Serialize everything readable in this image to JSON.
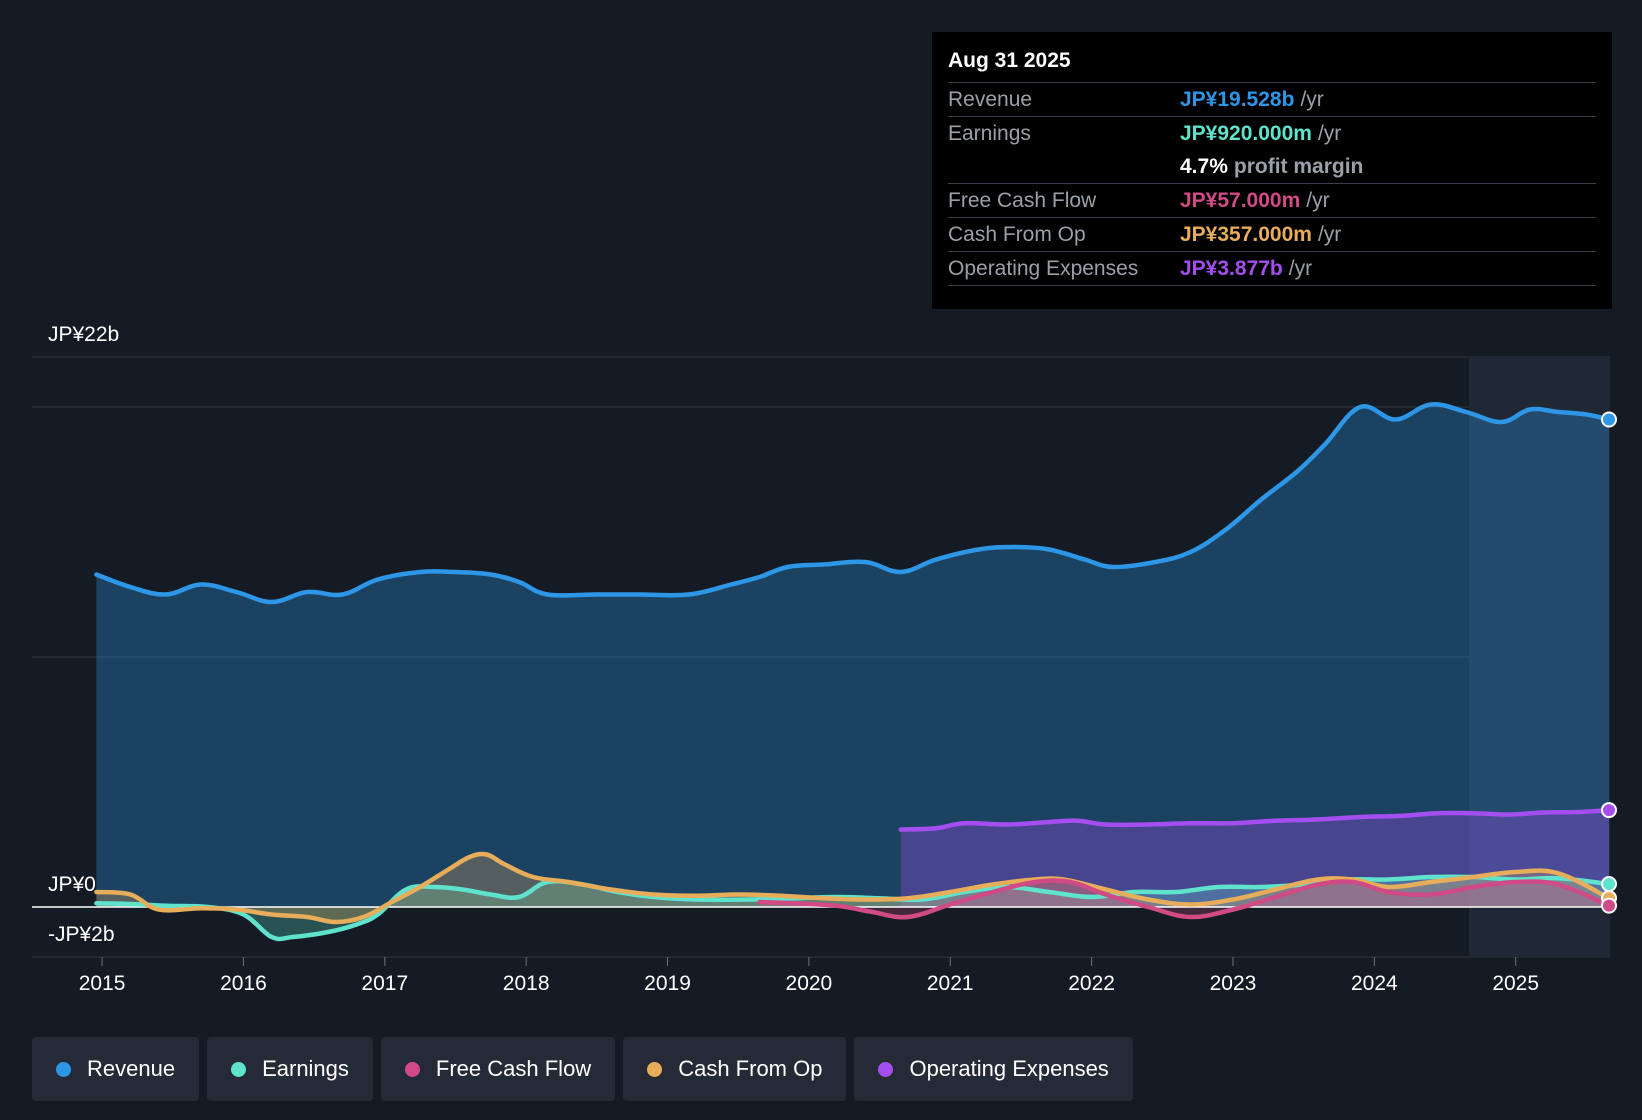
{
  "colors": {
    "revenue": "#2d96e6",
    "earnings": "#5fe3cc",
    "fcf": "#d04a85",
    "cfo": "#e8ad5a",
    "opex": "#a44ef0"
  },
  "tooltip": {
    "date": "Aug 31 2025",
    "revenue_label": "Revenue",
    "revenue_value": "JP¥19.528b",
    "earnings_label": "Earnings",
    "earnings_value": "JP¥920.000m",
    "margin_value": "4.7%",
    "margin_label": "profit margin",
    "fcf_label": "Free Cash Flow",
    "fcf_value": "JP¥57.000m",
    "cfo_label": "Cash From Op",
    "cfo_value": "JP¥357.000m",
    "opex_label": "Operating Expenses",
    "opex_value": "JP¥3.877b",
    "per_year": "/yr"
  },
  "legend": {
    "revenue": "Revenue",
    "earnings": "Earnings",
    "fcf": "Free Cash Flow",
    "cfo": "Cash From Op",
    "opex": "Operating Expenses"
  },
  "chart_data": {
    "type": "line",
    "ylim": [
      -2,
      22
    ],
    "y_tick_labels": [
      {
        "label": "JP¥22b",
        "value": 22
      },
      {
        "label": "JP¥0",
        "value": 0
      },
      {
        "label": "-JP¥2b",
        "value": -2
      }
    ],
    "y_gridlines": [
      22,
      20,
      10,
      0,
      -2
    ],
    "xlim": [
      2014.95,
      2025.66
    ],
    "x_ticks": [
      {
        "label": "2015",
        "value": 2015
      },
      {
        "label": "2016",
        "value": 2016
      },
      {
        "label": "2017",
        "value": 2017
      },
      {
        "label": "2018",
        "value": 2018
      },
      {
        "label": "2019",
        "value": 2019
      },
      {
        "label": "2020",
        "value": 2020
      },
      {
        "label": "2021",
        "value": 2021
      },
      {
        "label": "2022",
        "value": 2022
      },
      {
        "label": "2023",
        "value": 2023
      },
      {
        "label": "2024",
        "value": 2024
      },
      {
        "label": "2025",
        "value": 2025
      }
    ],
    "highlight_start": 2024.67,
    "series": [
      {
        "name": "Revenue",
        "key": "revenue",
        "area": true,
        "x": [
          2014.96,
          2015.2,
          2015.45,
          2015.7,
          2015.95,
          2016.2,
          2016.45,
          2016.7,
          2016.95,
          2017.25,
          2017.5,
          2017.75,
          2017.95,
          2018.15,
          2018.5,
          2018.8,
          2019.15,
          2019.45,
          2019.65,
          2019.85,
          2020.1,
          2020.4,
          2020.65,
          2020.9,
          2021.2,
          2021.45,
          2021.7,
          2021.95,
          2022.15,
          2022.45,
          2022.7,
          2022.95,
          2023.2,
          2023.45,
          2023.65,
          2023.9,
          2024.15,
          2024.4,
          2024.65,
          2024.9,
          2025.1,
          2025.3,
          2025.5,
          2025.66
        ],
        "values": [
          13.3,
          12.8,
          12.5,
          12.9,
          12.6,
          12.2,
          12.6,
          12.5,
          13.1,
          13.4,
          13.4,
          13.3,
          13.0,
          12.5,
          12.5,
          12.5,
          12.5,
          12.9,
          13.2,
          13.6,
          13.7,
          13.8,
          13.4,
          13.9,
          14.3,
          14.4,
          14.3,
          13.9,
          13.6,
          13.8,
          14.2,
          15.1,
          16.3,
          17.4,
          18.5,
          20.0,
          19.5,
          20.1,
          19.8,
          19.4,
          19.9,
          19.8,
          19.7,
          19.5
        ]
      },
      {
        "name": "Operating Expenses",
        "key": "opex",
        "area": true,
        "x": [
          2020.65,
          2020.9,
          2021.1,
          2021.4,
          2021.7,
          2021.9,
          2022.1,
          2022.4,
          2022.7,
          2023.0,
          2023.3,
          2023.6,
          2023.9,
          2024.2,
          2024.45,
          2024.7,
          2024.95,
          2025.2,
          2025.45,
          2025.66
        ],
        "values": [
          3.1,
          3.15,
          3.35,
          3.3,
          3.4,
          3.45,
          3.3,
          3.3,
          3.35,
          3.35,
          3.45,
          3.5,
          3.6,
          3.65,
          3.75,
          3.75,
          3.7,
          3.78,
          3.8,
          3.877
        ]
      },
      {
        "name": "Earnings",
        "key": "earnings",
        "area": true,
        "x": [
          2014.96,
          2015.2,
          2015.45,
          2015.75,
          2016.0,
          2016.2,
          2016.35,
          2016.6,
          2016.8,
          2016.95,
          2017.15,
          2017.35,
          2017.55,
          2017.75,
          2017.95,
          2018.15,
          2018.4,
          2018.65,
          2018.9,
          2019.2,
          2019.6,
          2019.9,
          2020.2,
          2020.5,
          2020.8,
          2021.1,
          2021.4,
          2021.7,
          2022.0,
          2022.3,
          2022.6,
          2022.9,
          2023.2,
          2023.5,
          2023.8,
          2024.1,
          2024.4,
          2024.7,
          2025.0,
          2025.3,
          2025.66
        ],
        "values": [
          0.15,
          0.12,
          0.05,
          0.0,
          -0.3,
          -1.2,
          -1.2,
          -1.0,
          -0.7,
          -0.3,
          0.7,
          0.8,
          0.7,
          0.5,
          0.4,
          1.0,
          0.9,
          0.6,
          0.4,
          0.3,
          0.3,
          0.35,
          0.4,
          0.35,
          0.3,
          0.6,
          0.8,
          0.6,
          0.4,
          0.6,
          0.6,
          0.8,
          0.8,
          0.9,
          1.1,
          1.1,
          1.2,
          1.2,
          1.1,
          1.15,
          0.92
        ]
      },
      {
        "name": "Cash From Op",
        "key": "cfo",
        "area": true,
        "x": [
          2014.96,
          2015.2,
          2015.4,
          2015.7,
          2015.95,
          2016.2,
          2016.45,
          2016.65,
          2016.85,
          2017.05,
          2017.25,
          2017.45,
          2017.6,
          2017.72,
          2017.85,
          2018.05,
          2018.3,
          2018.6,
          2018.9,
          2019.2,
          2019.5,
          2019.8,
          2020.1,
          2020.4,
          2020.7,
          2021.0,
          2021.3,
          2021.6,
          2021.8,
          2022.1,
          2022.4,
          2022.7,
          2023.0,
          2023.3,
          2023.6,
          2023.85,
          2024.1,
          2024.4,
          2024.7,
          2025.0,
          2025.3,
          2025.66
        ],
        "values": [
          0.6,
          0.5,
          -0.1,
          -0.05,
          -0.1,
          -0.3,
          -0.4,
          -0.6,
          -0.4,
          0.2,
          0.8,
          1.5,
          2.0,
          2.1,
          1.7,
          1.2,
          1.0,
          0.7,
          0.5,
          0.45,
          0.5,
          0.45,
          0.35,
          0.3,
          0.35,
          0.6,
          0.9,
          1.1,
          1.1,
          0.7,
          0.3,
          0.1,
          0.3,
          0.7,
          1.1,
          1.1,
          0.8,
          1.0,
          1.2,
          1.4,
          1.35,
          0.357
        ]
      },
      {
        "name": "Free Cash Flow",
        "key": "fcf",
        "area": true,
        "x": [
          2019.65,
          2019.9,
          2020.2,
          2020.45,
          2020.7,
          2021.0,
          2021.3,
          2021.6,
          2021.85,
          2022.1,
          2022.4,
          2022.7,
          2023.0,
          2023.3,
          2023.6,
          2023.85,
          2024.1,
          2024.4,
          2024.7,
          2025.0,
          2025.3,
          2025.66
        ],
        "values": [
          0.2,
          0.15,
          0.05,
          -0.2,
          -0.4,
          0.1,
          0.6,
          1.0,
          1.0,
          0.5,
          0.0,
          -0.4,
          -0.1,
          0.4,
          0.9,
          1.0,
          0.6,
          0.5,
          0.8,
          1.0,
          0.9,
          0.057
        ]
      }
    ]
  }
}
